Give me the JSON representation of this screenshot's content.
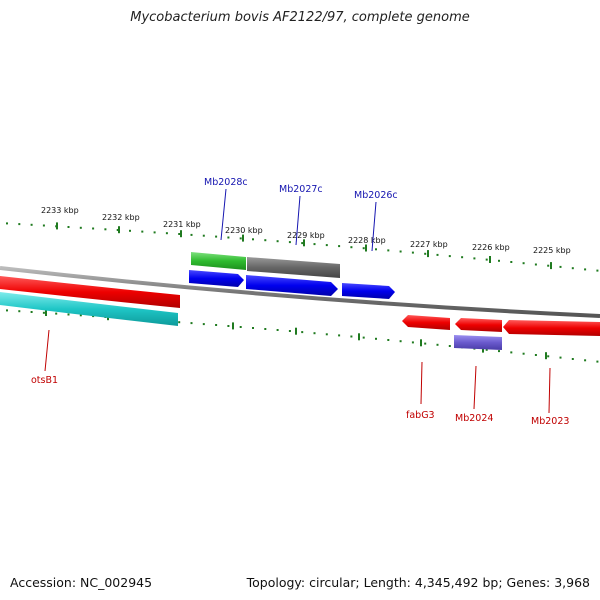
{
  "title": "Mycobacterium bovis AF2122/97, complete genome",
  "footer": {
    "accession": "Accession: NC_002945",
    "summary": "Topology: circular; Length: 4,345,492 bp; Genes: 3,968"
  },
  "colors": {
    "backbone": "#8a8a8a",
    "tick": "#1f7a1f",
    "forward_label": "#1515b0",
    "reverse_label": "#c00000"
  },
  "scale_labels": [
    "2233 kbp",
    "2232 kbp",
    "2231 kbp",
    "2230 kbp",
    "2229 kbp",
    "2228 kbp",
    "2227 kbp",
    "2226 kbp",
    "2225 kbp"
  ],
  "genes": [
    {
      "label": "Mb2028c",
      "strand": "forward",
      "color": "#1515b0"
    },
    {
      "label": "Mb2027c",
      "strand": "forward",
      "color": "#1515b0"
    },
    {
      "label": "Mb2026c",
      "strand": "forward",
      "color": "#1515b0"
    },
    {
      "label": "otsB1",
      "strand": "reverse",
      "color": "#c00000"
    },
    {
      "label": "fabG3",
      "strand": "reverse",
      "color": "#c00000"
    },
    {
      "label": "Mb2024",
      "strand": "reverse",
      "color": "#c00000"
    },
    {
      "label": "Mb2023",
      "strand": "reverse",
      "color": "#c00000"
    }
  ]
}
